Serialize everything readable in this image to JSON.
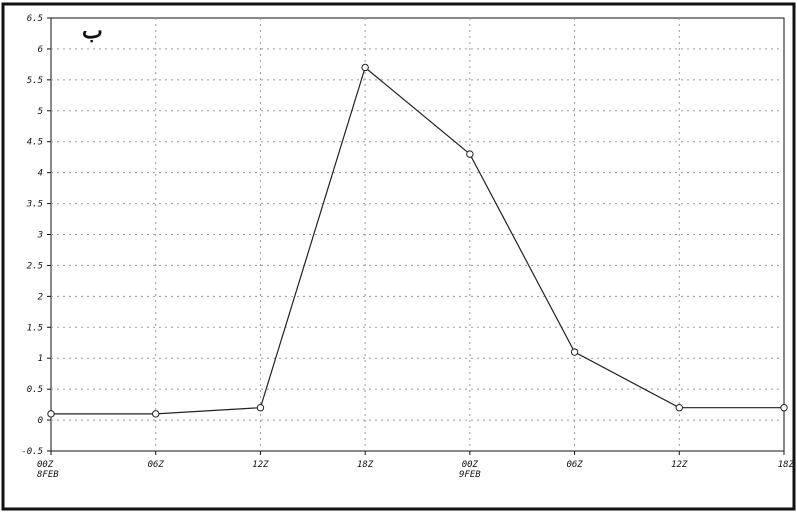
{
  "chart_data": {
    "type": "line",
    "title": "",
    "xlabel": "",
    "ylabel": "",
    "panel_marker": "ب",
    "grid": true,
    "legend": "none",
    "ylim": [
      -0.5,
      6.5
    ],
    "y_ticks": [
      "-0.5",
      "0",
      "0.5",
      "1",
      "1.5",
      "2",
      "2.5",
      "3",
      "3.5",
      "4",
      "4.5",
      "5",
      "5.5",
      "6",
      "6.5"
    ],
    "y_tick_values": [
      -0.5,
      0,
      0.5,
      1,
      1.5,
      2,
      2.5,
      3,
      3.5,
      4,
      4.5,
      5,
      5.5,
      6,
      6.5
    ],
    "x_ticks": [
      {
        "top": "00Z",
        "bottom": "8FEB"
      },
      {
        "top": "06Z",
        "bottom": ""
      },
      {
        "top": "12Z",
        "bottom": ""
      },
      {
        "top": "18Z",
        "bottom": ""
      },
      {
        "top": "00Z",
        "bottom": "9FEB"
      },
      {
        "top": "06Z",
        "bottom": ""
      },
      {
        "top": "12Z",
        "bottom": ""
      },
      {
        "top": "18Z",
        "bottom": ""
      }
    ],
    "series": [
      {
        "values": [
          0.1,
          0.1,
          0.2,
          5.7,
          4.3,
          1.1,
          0.2,
          0.2
        ]
      }
    ],
    "colors": {
      "line": "#222222",
      "grid": "#9a9a9a",
      "axis": "#111111",
      "marker_fill": "#ffffff"
    }
  }
}
